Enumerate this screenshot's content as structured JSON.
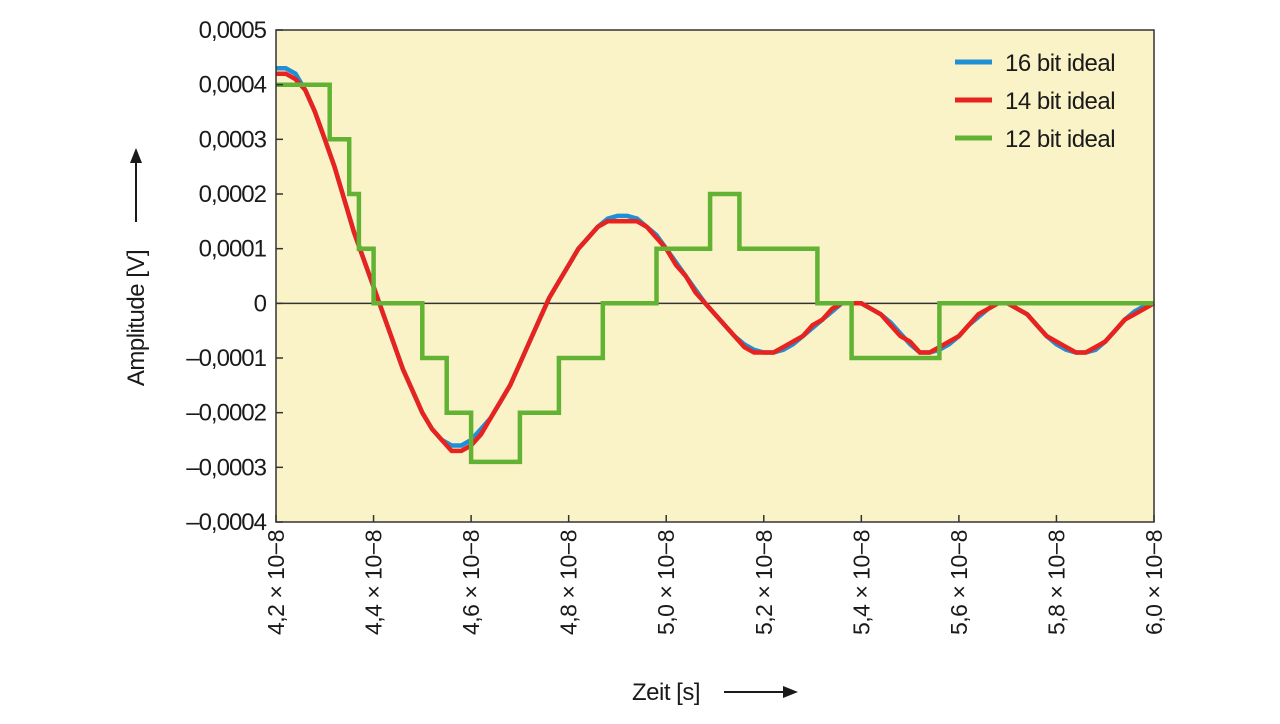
{
  "chart_data": {
    "type": "line",
    "title": "",
    "xlabel": "Zeit [s]",
    "ylabel": "Amplitude [V]",
    "xlim": [
      4.2e-08,
      6e-08
    ],
    "ylim": [
      -0.0004,
      0.0005
    ],
    "x_ticks": [
      4.2e-08,
      4.4e-08,
      4.6e-08,
      4.8e-08,
      5e-08,
      5.2e-08,
      5.4e-08,
      5.6e-08,
      5.8e-08,
      6e-08
    ],
    "x_tick_labels": [
      "4,2 × 10−8",
      "4,4 × 10−8",
      "4,6 × 10−8",
      "4,8 × 10−8",
      "5,0 × 10−8",
      "5,2 × 10−8",
      "5,4 × 10−8",
      "5,6 × 10−8",
      "5,8 × 10−8",
      "6,0 × 10−8"
    ],
    "y_ticks": [
      0.0005,
      0.0004,
      0.0003,
      0.0002,
      0.0001,
      0,
      -0.0001,
      -0.0002,
      -0.0003,
      -0.0004
    ],
    "y_tick_labels": [
      "0,0005",
      "0,0004",
      "0,0003",
      "0,0002",
      "0,0001",
      "0",
      "–0,0001",
      "–0,0002",
      "–0,0003",
      "–0,0004"
    ],
    "legend_position": "top-right",
    "grid": false,
    "zero_line": true,
    "background": "#fbf3c8",
    "series": [
      {
        "name": "16 bit ideal",
        "color": "#1f8fd6",
        "x": [
          4.2e-08,
          4.22e-08,
          4.24e-08,
          4.26e-08,
          4.28e-08,
          4.3e-08,
          4.32e-08,
          4.34e-08,
          4.36e-08,
          4.38e-08,
          4.4e-08,
          4.42e-08,
          4.44e-08,
          4.46e-08,
          4.48e-08,
          4.5e-08,
          4.52e-08,
          4.54e-08,
          4.56e-08,
          4.58e-08,
          4.6e-08,
          4.62e-08,
          4.64e-08,
          4.66e-08,
          4.68e-08,
          4.7e-08,
          4.72e-08,
          4.74e-08,
          4.76e-08,
          4.78e-08,
          4.8e-08,
          4.82e-08,
          4.84e-08,
          4.86e-08,
          4.88e-08,
          4.9e-08,
          4.92e-08,
          4.94e-08,
          4.96e-08,
          4.98e-08,
          5e-08,
          5.02e-08,
          5.04e-08,
          5.06e-08,
          5.08e-08,
          5.1e-08,
          5.12e-08,
          5.14e-08,
          5.16e-08,
          5.18e-08,
          5.2e-08,
          5.22e-08,
          5.24e-08,
          5.26e-08,
          5.28e-08,
          5.3e-08,
          5.32e-08,
          5.34e-08,
          5.36e-08,
          5.38e-08,
          5.4e-08,
          5.42e-08,
          5.44e-08,
          5.46e-08,
          5.48e-08,
          5.5e-08,
          5.52e-08,
          5.54e-08,
          5.56e-08,
          5.58e-08,
          5.6e-08,
          5.62e-08,
          5.64e-08,
          5.66e-08,
          5.68e-08,
          5.7e-08,
          5.72e-08,
          5.74e-08,
          5.76e-08,
          5.78e-08,
          5.8e-08,
          5.82e-08,
          5.84e-08,
          5.86e-08,
          5.88e-08,
          5.9e-08,
          5.92e-08,
          5.94e-08,
          5.96e-08,
          5.98e-08,
          6e-08
        ],
        "y": [
          0.00043,
          0.00043,
          0.00042,
          0.00039,
          0.00035,
          0.0003,
          0.00025,
          0.00019,
          0.00013,
          8e-05,
          3e-05,
          -2e-05,
          -7e-05,
          -0.00012,
          -0.00016,
          -0.0002,
          -0.00023,
          -0.00025,
          -0.00026,
          -0.00026,
          -0.00025,
          -0.00023,
          -0.00021,
          -0.00018,
          -0.00015,
          -0.00011,
          -7e-05,
          -3e-05,
          1e-05,
          4e-05,
          7e-05,
          0.0001,
          0.00012,
          0.00014,
          0.000155,
          0.00016,
          0.00016,
          0.000155,
          0.00014,
          0.000125,
          0.0001,
          7.5e-05,
          5e-05,
          2.5e-05,
          0.0,
          -2e-05,
          -4e-05,
          -6e-05,
          -7.5e-05,
          -8.5e-05,
          -9e-05,
          -9e-05,
          -8.5e-05,
          -7.5e-05,
          -6e-05,
          -4.5e-05,
          -3e-05,
          -1.5e-05,
          0.0,
          0.0,
          0.0,
          -1e-05,
          -2e-05,
          -3.5e-05,
          -5.5e-05,
          -7.5e-05,
          -9e-05,
          -9e-05,
          -8.5e-05,
          -7.5e-05,
          -6e-05,
          -4e-05,
          -2.5e-05,
          -1e-05,
          0.0,
          0.0,
          -1e-05,
          -2e-05,
          -4e-05,
          -6e-05,
          -7.5e-05,
          -8.5e-05,
          -9e-05,
          -9e-05,
          -8.5e-05,
          -7e-05,
          -5e-05,
          -3e-05,
          -1.5e-05,
          -5e-06,
          0.0
        ]
      },
      {
        "name": "14 bit ideal",
        "color": "#e8231f",
        "x": [
          4.2e-08,
          4.22e-08,
          4.24e-08,
          4.26e-08,
          4.28e-08,
          4.3e-08,
          4.32e-08,
          4.34e-08,
          4.36e-08,
          4.38e-08,
          4.4e-08,
          4.42e-08,
          4.44e-08,
          4.46e-08,
          4.48e-08,
          4.5e-08,
          4.52e-08,
          4.54e-08,
          4.56e-08,
          4.58e-08,
          4.6e-08,
          4.62e-08,
          4.64e-08,
          4.66e-08,
          4.68e-08,
          4.7e-08,
          4.72e-08,
          4.74e-08,
          4.76e-08,
          4.78e-08,
          4.8e-08,
          4.82e-08,
          4.84e-08,
          4.86e-08,
          4.88e-08,
          4.9e-08,
          4.92e-08,
          4.94e-08,
          4.96e-08,
          4.98e-08,
          5e-08,
          5.02e-08,
          5.04e-08,
          5.06e-08,
          5.08e-08,
          5.1e-08,
          5.12e-08,
          5.14e-08,
          5.16e-08,
          5.18e-08,
          5.2e-08,
          5.22e-08,
          5.24e-08,
          5.26e-08,
          5.28e-08,
          5.3e-08,
          5.32e-08,
          5.34e-08,
          5.36e-08,
          5.38e-08,
          5.4e-08,
          5.42e-08,
          5.44e-08,
          5.46e-08,
          5.48e-08,
          5.5e-08,
          5.52e-08,
          5.54e-08,
          5.56e-08,
          5.58e-08,
          5.6e-08,
          5.62e-08,
          5.64e-08,
          5.66e-08,
          5.68e-08,
          5.7e-08,
          5.72e-08,
          5.74e-08,
          5.76e-08,
          5.78e-08,
          5.8e-08,
          5.82e-08,
          5.84e-08,
          5.86e-08,
          5.88e-08,
          5.9e-08,
          5.92e-08,
          5.94e-08,
          5.96e-08,
          5.98e-08,
          6e-08
        ],
        "y": [
          0.00042,
          0.00042,
          0.00041,
          0.00039,
          0.00035,
          0.0003,
          0.00025,
          0.00019,
          0.00013,
          8e-05,
          3e-05,
          -2e-05,
          -7e-05,
          -0.00012,
          -0.00016,
          -0.0002,
          -0.00023,
          -0.00025,
          -0.00027,
          -0.00027,
          -0.00026,
          -0.00024,
          -0.00021,
          -0.00018,
          -0.00015,
          -0.00011,
          -7e-05,
          -3e-05,
          1e-05,
          4e-05,
          7e-05,
          0.0001,
          0.00012,
          0.00014,
          0.00015,
          0.00015,
          0.00015,
          0.00015,
          0.00014,
          0.00012,
          0.0001,
          7e-05,
          5e-05,
          2e-05,
          0.0,
          -2e-05,
          -4e-05,
          -6e-05,
          -8e-05,
          -9e-05,
          -9e-05,
          -9e-05,
          -8e-05,
          -7e-05,
          -6e-05,
          -4e-05,
          -3e-05,
          -1e-05,
          0.0,
          0.0,
          0.0,
          -1e-05,
          -2e-05,
          -4e-05,
          -6e-05,
          -7e-05,
          -9e-05,
          -9e-05,
          -8e-05,
          -7e-05,
          -6e-05,
          -4e-05,
          -2e-05,
          -1e-05,
          0.0,
          0.0,
          -1e-05,
          -2e-05,
          -4e-05,
          -6e-05,
          -7e-05,
          -8e-05,
          -9e-05,
          -9e-05,
          -8e-05,
          -7e-05,
          -5e-05,
          -3e-05,
          -2e-05,
          -1e-05,
          0.0
        ]
      },
      {
        "name": "12 bit ideal",
        "color": "#62b234",
        "step_points": [
          [
            4.2e-08,
            0.0004
          ],
          [
            4.31e-08,
            0.0004
          ],
          [
            4.31e-08,
            0.0003
          ],
          [
            4.35e-08,
            0.0003
          ],
          [
            4.35e-08,
            0.0002
          ],
          [
            4.37e-08,
            0.0002
          ],
          [
            4.37e-08,
            0.0001
          ],
          [
            4.4e-08,
            0.0001
          ],
          [
            4.4e-08,
            0.0
          ],
          [
            4.5e-08,
            0.0
          ],
          [
            4.5e-08,
            -0.0001
          ],
          [
            4.55e-08,
            -0.0001
          ],
          [
            4.55e-08,
            -0.0002
          ],
          [
            4.6e-08,
            -0.0002
          ],
          [
            4.6e-08,
            -0.00029
          ],
          [
            4.7e-08,
            -0.00029
          ],
          [
            4.7e-08,
            -0.0002
          ],
          [
            4.78e-08,
            -0.0002
          ],
          [
            4.78e-08,
            -0.0001
          ],
          [
            4.87e-08,
            -0.0001
          ],
          [
            4.87e-08,
            0.0
          ],
          [
            4.98e-08,
            0.0
          ],
          [
            4.98e-08,
            0.0001
          ],
          [
            5.09e-08,
            0.0001
          ],
          [
            5.09e-08,
            0.0002
          ],
          [
            5.15e-08,
            0.0002
          ],
          [
            5.15e-08,
            0.0001
          ],
          [
            5.31e-08,
            0.0001
          ],
          [
            5.31e-08,
            0.0
          ],
          [
            5.38e-08,
            0.0
          ],
          [
            5.38e-08,
            -0.0001
          ],
          [
            5.56e-08,
            -0.0001
          ],
          [
            5.56e-08,
            0.0
          ],
          [
            6e-08,
            0.0
          ]
        ]
      }
    ]
  }
}
